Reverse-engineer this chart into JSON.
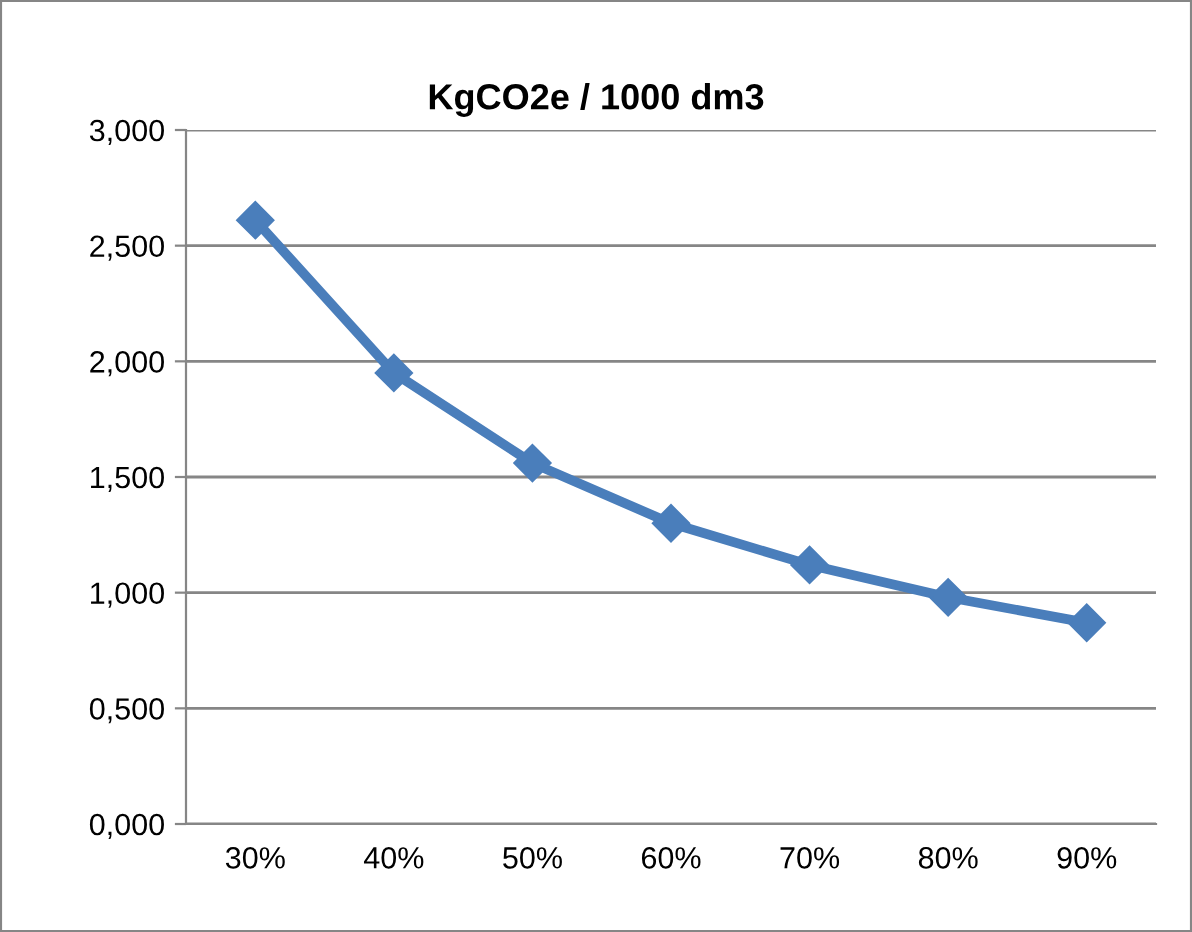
{
  "chart_data": {
    "type": "line",
    "title": "KgCO2e / 1000 dm3",
    "categories": [
      "30%",
      "40%",
      "50%",
      "60%",
      "70%",
      "80%",
      "90%"
    ],
    "series": [
      {
        "color": "#4a7ebb",
        "values": [
          2.61,
          1.95,
          1.56,
          1.3,
          1.12,
          0.98,
          0.87
        ]
      }
    ],
    "ylim": [
      0,
      3
    ],
    "yticks": [
      {
        "value": 0,
        "label": "0,000"
      },
      {
        "value": 0.5,
        "label": "0,500"
      },
      {
        "value": 1,
        "label": "1,000"
      },
      {
        "value": 1.5,
        "label": "1,500"
      },
      {
        "value": 2,
        "label": "2,000"
      },
      {
        "value": 2.5,
        "label": "2,500"
      },
      {
        "value": 3,
        "label": "3,000"
      }
    ],
    "grid": "y",
    "marker": "diamond",
    "line_style": "solid"
  }
}
